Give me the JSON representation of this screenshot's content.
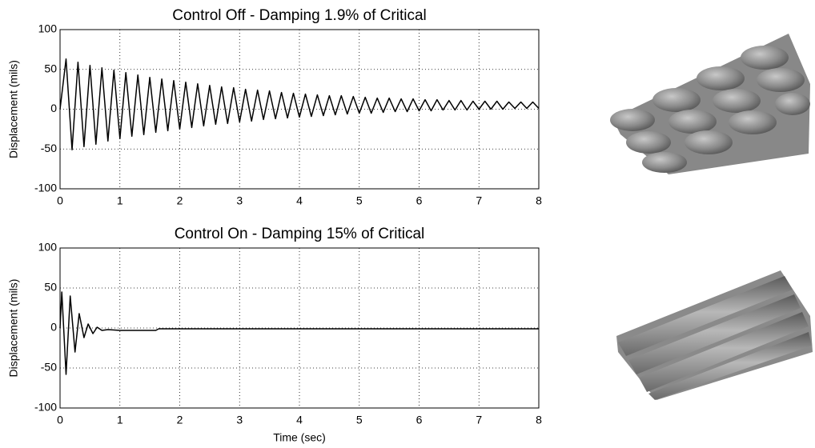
{
  "chart_data": [
    {
      "type": "line",
      "title": "Control Off - Damping 1.9% of Critical",
      "y_label": "Displacement (mils)",
      "x": [
        0,
        0.1,
        0.2,
        0.3,
        0.4,
        0.5,
        0.6,
        0.7,
        0.8,
        0.9,
        1.0,
        1.1,
        1.2,
        1.3,
        1.4,
        1.5,
        1.6,
        1.7,
        1.8,
        1.9,
        2.0,
        2.1,
        2.2,
        2.3,
        2.4,
        2.5,
        2.6,
        2.7,
        2.8,
        2.9,
        3.0,
        3.1,
        3.2,
        3.3,
        3.4,
        3.5,
        3.6,
        3.7,
        3.8,
        3.9,
        4.0,
        4.1,
        4.2,
        4.3,
        4.4,
        4.5,
        4.6,
        4.7,
        4.8,
        4.9,
        5.0,
        5.1,
        5.2,
        5.3,
        5.4,
        5.5,
        5.6,
        5.7,
        5.8,
        5.9,
        6.0,
        6.1,
        6.2,
        6.3,
        6.4,
        6.5,
        6.6,
        6.7,
        6.8,
        6.9,
        7.0,
        7.1,
        7.2,
        7.3,
        7.4,
        7.5,
        7.6,
        7.7,
        7.8,
        7.9,
        8.0
      ],
      "values": [
        0,
        63,
        -51,
        59,
        -47,
        55,
        -44,
        52,
        -40,
        49,
        -37,
        46,
        -34,
        43,
        -32,
        40,
        -29,
        38,
        -27,
        36,
        -25,
        34,
        -23,
        32,
        -21,
        30,
        -19,
        28,
        -18,
        27,
        -16,
        25,
        -15,
        24,
        -13,
        23,
        -12,
        21,
        -11,
        20,
        -10,
        19,
        -9,
        18,
        -8,
        17,
        -7,
        17,
        -6,
        16,
        -5,
        15,
        -5,
        14,
        -4,
        14,
        -3,
        13,
        -3,
        13,
        -2,
        12,
        -2,
        12,
        -1,
        11,
        -1,
        11,
        -1,
        10,
        0,
        10,
        0,
        10,
        0,
        9,
        1,
        9,
        1,
        9,
        1
      ],
      "color": "#000000",
      "xlim": [
        0,
        8
      ],
      "ylim": [
        -100,
        100
      ],
      "xticks": [
        0,
        1,
        2,
        3,
        4,
        5,
        6,
        7,
        8
      ],
      "yticks": [
        -100,
        -50,
        0,
        50,
        100
      ],
      "grid": true
    },
    {
      "type": "line",
      "title": "Control On - Damping 15% of Critical",
      "y_label": "Displacement (mils)",
      "x_label": "Time (sec)",
      "x": [
        0,
        0.03,
        0.1,
        0.17,
        0.25,
        0.32,
        0.4,
        0.47,
        0.55,
        0.62,
        0.7,
        0.8,
        1.0,
        1.6,
        1.65,
        8
      ],
      "values": [
        0,
        45,
        -58,
        40,
        -30,
        18,
        -12,
        5,
        -7,
        1,
        -3,
        -2,
        -3,
        -3,
        -1,
        -1
      ],
      "color": "#000000",
      "xlim": [
        0,
        8
      ],
      "ylim": [
        -100,
        100
      ],
      "xticks": [
        0,
        1,
        2,
        3,
        4,
        5,
        6,
        7,
        8
      ],
      "yticks": [
        -100,
        -50,
        0,
        50,
        100
      ],
      "grid": true
    }
  ]
}
